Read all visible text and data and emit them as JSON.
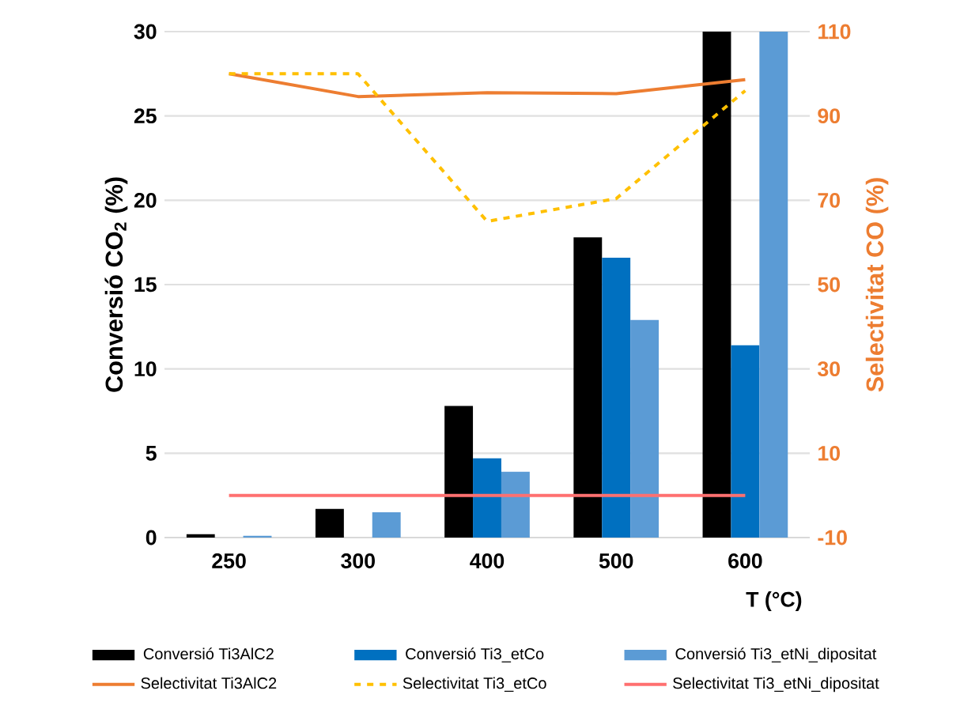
{
  "chart_data": {
    "type": "bar",
    "xlabel": "T (°C)",
    "ylabel": "Conversió CO$_{2}$ (%)",
    "y2label": "Selectivitat CO (%)",
    "categories": [
      "250",
      "300",
      "400",
      "500",
      "600"
    ],
    "series": [
      {
        "name": "Conversió Ti3AlC2",
        "type": "bar",
        "color": "#000000",
        "values": [
          0.2,
          1.7,
          7.8,
          17.8,
          30
        ]
      },
      {
        "name": "Conversió Ti3_etCo",
        "type": "bar",
        "color": "#0070c0",
        "values": [
          null,
          null,
          4.7,
          16.6,
          11.4
        ]
      },
      {
        "name": "Conversió Ti3_etNi_dipositat",
        "type": "bar",
        "color": "#5b9bd5",
        "values": [
          0.1,
          1.5,
          3.9,
          12.9,
          30
        ]
      },
      {
        "name": "Selectivitat Ti3AlC2",
        "type": "line",
        "axis": "y2",
        "color": "#ed7d31",
        "line_style": "solid",
        "values": [
          100,
          94.6,
          95.5,
          95.3,
          98.6
        ]
      },
      {
        "name": "Selectivitat Ti3_etCo",
        "type": "line",
        "axis": "y2",
        "color": "#ffc000",
        "line_style": "dashed",
        "values": [
          100,
          100,
          65,
          70.4,
          96
        ]
      },
      {
        "name": "Selectivitat Ti3_etNi_dipositat",
        "type": "line",
        "axis": "y2",
        "color": "#ff7070",
        "line_style": "solid",
        "values": [
          0,
          0,
          0,
          0,
          0
        ]
      }
    ],
    "ylim": [
      0,
      30
    ],
    "yticks": [
      0,
      5,
      10,
      15,
      20,
      25,
      30
    ],
    "y2lim": [
      -10,
      110
    ],
    "y2ticks": [
      -10,
      10,
      30,
      50,
      70,
      90,
      110
    ],
    "grid": "y",
    "legend": "bottom"
  }
}
